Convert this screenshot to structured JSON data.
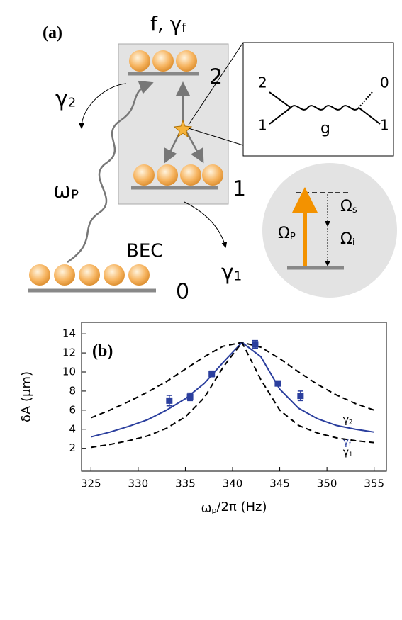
{
  "diagram": {
    "panel": "(a)",
    "top_label": "f, γf",
    "level_2": "2",
    "level_1": "1",
    "level_0": "0",
    "gamma_2": "γ2",
    "gamma_1": "γ1",
    "omega_p": "ωP",
    "bec": "BEC",
    "inset": {
      "in_top": "2",
      "out_top": "0",
      "in_bottom": "1",
      "out_bottom": "1",
      "coupling": "g"
    },
    "circle": {
      "pump": "ΩP",
      "signal": "Ωs",
      "idler": "Ωi"
    }
  },
  "chart_data": {
    "type": "line",
    "panel": "(b)",
    "xlabel": "ωp/2π (Hz)",
    "ylabel": "δA (μm)",
    "xlim": [
      324,
      356.3
    ],
    "xticks": [
      325,
      330,
      335,
      340,
      345,
      350,
      355
    ],
    "ylim": [
      -0.4,
      15.2
    ],
    "yticks": [
      2,
      4,
      6,
      8,
      10,
      12,
      14
    ],
    "x": [
      325,
      327,
      329,
      331,
      333,
      335,
      337,
      339,
      341,
      343,
      345,
      347,
      349,
      351,
      353,
      355
    ],
    "series": [
      {
        "name": "γ2",
        "color": "#000000",
        "dash": true,
        "values": [
          5.2,
          6.0,
          6.9,
          7.9,
          9.0,
          10.3,
          11.6,
          12.7,
          13.1,
          12.6,
          11.4,
          10.0,
          8.7,
          7.6,
          6.7,
          6.0
        ]
      },
      {
        "name": "γf",
        "color": "#2b3f9e",
        "dash": false,
        "values": [
          3.2,
          3.7,
          4.3,
          5.0,
          6.0,
          7.2,
          8.8,
          11.0,
          13.1,
          11.6,
          8.2,
          6.2,
          5.1,
          4.4,
          4.0,
          3.7
        ]
      },
      {
        "name": "γ1",
        "color": "#000000",
        "dash": true,
        "values": [
          2.1,
          2.4,
          2.8,
          3.3,
          4.1,
          5.3,
          7.3,
          10.5,
          13.1,
          9.2,
          6.0,
          4.4,
          3.6,
          3.1,
          2.8,
          2.6
        ]
      }
    ],
    "measurements": {
      "color": "#2b3f9e",
      "x": [
        333.3,
        335.5,
        337.8,
        342.4,
        344.8,
        347.2
      ],
      "values": [
        7.0,
        7.4,
        9.8,
        12.9,
        8.8,
        7.5
      ],
      "errors": [
        0.55,
        0.4,
        0.3,
        0.4,
        0.1,
        0.5
      ]
    }
  }
}
